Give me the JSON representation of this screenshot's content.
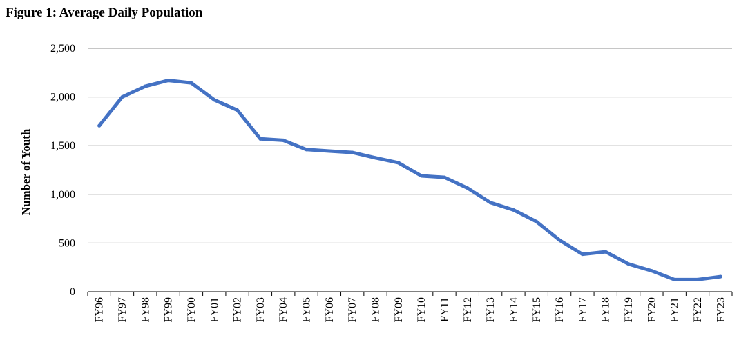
{
  "chart_data": {
    "type": "line",
    "title": "Figure 1: Average Daily Population",
    "xlabel": "",
    "ylabel": "Number of Youth",
    "ylim": [
      0,
      2500
    ],
    "yticks": [
      0,
      500,
      1000,
      1500,
      2000,
      2500
    ],
    "ytick_labels": [
      "0",
      "500",
      "1,000",
      "1,500",
      "2,000",
      "2,500"
    ],
    "grid": "horizontal",
    "legend": "none",
    "line_color": "#4472C4",
    "categories": [
      "FY96",
      "FY97",
      "FY98",
      "FY99",
      "FY00",
      "FY01",
      "FY02",
      "FY03",
      "FY04",
      "FY05",
      "FY06",
      "FY07",
      "FY08",
      "FY09",
      "FY10",
      "FY11",
      "FY12",
      "FY13",
      "FY14",
      "FY15",
      "FY16",
      "FY17",
      "FY18",
      "FY19",
      "FY20",
      "FY21",
      "FY22",
      "FY23"
    ],
    "series": [
      {
        "values": [
          1705,
          2000,
          2110,
          2170,
          2145,
          1970,
          1865,
          1570,
          1555,
          1460,
          1445,
          1430,
          1375,
          1325,
          1190,
          1175,
          1065,
          915,
          840,
          720,
          530,
          385,
          410,
          285,
          215,
          125,
          125,
          155
        ]
      }
    ]
  }
}
